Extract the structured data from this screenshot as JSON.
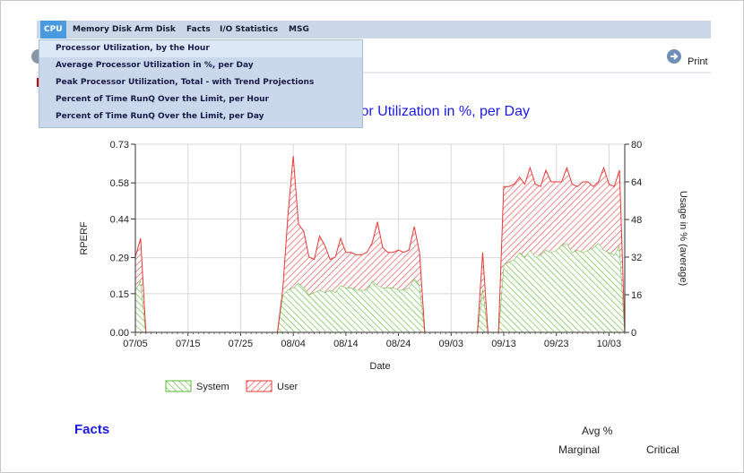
{
  "menu": {
    "items": [
      "CPU",
      "Memory",
      "Disk Arm",
      "Disk",
      "Facts",
      "I/O Statistics",
      "MSG"
    ],
    "dropdown": [
      "Processor Utilization, by the Hour",
      "Average Processor Utilization in %, per Day",
      "Peak Processor Utilization, Total - with Trend Projections",
      "Percent of Time RunQ Over the Limit, per Hour",
      "Percent of Time RunQ Over the Limit, per Day"
    ]
  },
  "print": "Print",
  "chart_data": {
    "type": "stacked_area",
    "title": "Average Processor Utilization in %, per Day",
    "x_label": "Date",
    "y_label": "RPERF",
    "y2_label": "Usage in % (average)",
    "x": [
      "07/05",
      "07/06",
      "07/07",
      "07/08",
      "07/09",
      "07/10",
      "07/11",
      "07/12",
      "07/13",
      "07/14",
      "07/15",
      "07/16",
      "07/17",
      "07/18",
      "07/19",
      "07/20",
      "07/21",
      "07/22",
      "07/23",
      "07/24",
      "07/25",
      "07/26",
      "07/27",
      "07/28",
      "07/29",
      "07/30",
      "07/31",
      "08/01",
      "08/02",
      "08/03",
      "08/04",
      "08/05",
      "08/06",
      "08/07",
      "08/08",
      "08/09",
      "08/10",
      "08/11",
      "08/12",
      "08/13",
      "08/14",
      "08/15",
      "08/16",
      "08/17",
      "08/18",
      "08/19",
      "08/20",
      "08/21",
      "08/22",
      "08/23",
      "08/24",
      "08/25",
      "08/26",
      "08/27",
      "08/28",
      "08/29",
      "08/30",
      "08/31",
      "09/01",
      "09/02",
      "09/03",
      "09/04",
      "09/05",
      "09/06",
      "09/07",
      "09/08",
      "09/09",
      "09/10",
      "09/11",
      "09/12",
      "09/13",
      "09/14",
      "09/15",
      "09/16",
      "09/17",
      "09/18",
      "09/19",
      "09/20",
      "09/21",
      "09/22",
      "09/23",
      "09/24",
      "09/25",
      "09/26",
      "09/27",
      "09/28",
      "09/29",
      "09/30",
      "10/01",
      "10/02",
      "10/03",
      "10/04",
      "10/05",
      "10/06"
    ],
    "xticks": [
      "07/05",
      "07/15",
      "07/25",
      "08/04",
      "08/14",
      "08/24",
      "09/03",
      "09/13",
      "09/23",
      "10/03"
    ],
    "ylim": [
      0,
      0.73
    ],
    "yticks": [
      {
        "value": 0,
        "label": "0.00"
      },
      0.15,
      0.29,
      0.44,
      0.58,
      0.73
    ],
    "y2lim": [
      0,
      80
    ],
    "y2ticks": [
      0,
      16,
      32,
      48,
      64,
      80
    ],
    "grid": true,
    "legend": "bottom",
    "series": [
      {
        "name": "System",
        "color": "#55b82e",
        "axis": "y2",
        "values": [
          18,
          22,
          0,
          0,
          0,
          0,
          0,
          0,
          0,
          0,
          0,
          0,
          0,
          0,
          0,
          0,
          0,
          0,
          0,
          0,
          0,
          0,
          0,
          0,
          0,
          0,
          0,
          0,
          16,
          18,
          19,
          21,
          19,
          16,
          17,
          18,
          17,
          18,
          17,
          20,
          19,
          19,
          18,
          18,
          18,
          22,
          20,
          19,
          19,
          19,
          18,
          18,
          19,
          23,
          20,
          0,
          0,
          0,
          0,
          0,
          0,
          0,
          0,
          0,
          0,
          0,
          19,
          0,
          0,
          0,
          29,
          30,
          31,
          34,
          32,
          35,
          32,
          33,
          35,
          34,
          35,
          37,
          38,
          34,
          35,
          34,
          35,
          36,
          38,
          35,
          34,
          33,
          37,
          0
        ]
      },
      {
        "name": "User",
        "color": "#e83a3a",
        "axis": "y2",
        "values": [
          14,
          18,
          0,
          0,
          0,
          0,
          0,
          0,
          0,
          0,
          0,
          0,
          0,
          0,
          0,
          0,
          0,
          0,
          0,
          0,
          0,
          0,
          0,
          0,
          0,
          0,
          0,
          0,
          2,
          32,
          56,
          25,
          24,
          16,
          14,
          23,
          20,
          13,
          15,
          20,
          15,
          15,
          15,
          15,
          16,
          16,
          27,
          17,
          15,
          15,
          17,
          16,
          16,
          22,
          14,
          0,
          0,
          0,
          0,
          0,
          0,
          0,
          0,
          0,
          0,
          0,
          15,
          0,
          0,
          0,
          33,
          32,
          32,
          32,
          31,
          35,
          31,
          29,
          34,
          30,
          29,
          27,
          32,
          29,
          27,
          30,
          29,
          26,
          26,
          35,
          29,
          29,
          32,
          0
        ]
      }
    ]
  },
  "facts": {
    "title": "Facts",
    "avg": "Avg %",
    "marginal": "Marginal",
    "critical": "Critical"
  }
}
